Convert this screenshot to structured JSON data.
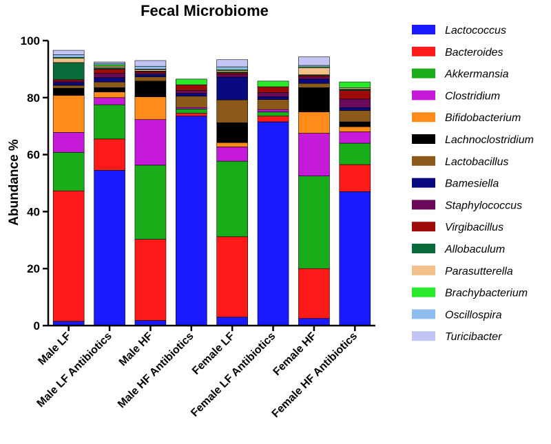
{
  "chart_data": {
    "type": "stacked-bar",
    "title": "Fecal Microbiome",
    "ylabel": "Abundance %",
    "xlabel": "",
    "ylim": [
      0,
      100
    ],
    "yticks": [
      0,
      20,
      40,
      60,
      80,
      100
    ],
    "legend_position": "right",
    "categories": [
      "Male LF",
      "Male LF Antibiotics",
      "Male HF",
      "Male HF Antibiotics",
      "Female LF",
      "Female LF Antibiotics",
      "Female HF",
      "Female HF Antibiotics"
    ],
    "series": [
      {
        "name": "Lactococcus",
        "color": "#1a1aff",
        "values": [
          1.5,
          54.5,
          1.8,
          73.5,
          3.0,
          71.5,
          2.5,
          47.0
        ]
      },
      {
        "name": "Bacteroides",
        "color": "#ff1a1a",
        "values": [
          45.8,
          11.0,
          28.5,
          1.0,
          28.2,
          2.0,
          17.5,
          9.5
        ]
      },
      {
        "name": "Akkermansia",
        "color": "#1aad1a",
        "values": [
          13.5,
          12.0,
          26.0,
          1.5,
          26.5,
          1.5,
          32.5,
          7.5
        ]
      },
      {
        "name": "Clostridium",
        "color": "#c61ad9",
        "values": [
          7.0,
          2.5,
          16.0,
          0.5,
          5.0,
          0.8,
          15.0,
          4.0
        ]
      },
      {
        "name": "Bifidobacterium",
        "color": "#ff8c1a",
        "values": [
          13.0,
          2.0,
          8.0,
          0.0,
          1.5,
          0.0,
          7.5,
          1.8
        ]
      },
      {
        "name": "Lachnoclostridium",
        "color": "#000000",
        "values": [
          2.5,
          1.5,
          5.5,
          0.0,
          7.0,
          0.0,
          8.5,
          1.7
        ]
      },
      {
        "name": "Lactobacillus",
        "color": "#8b5a1a",
        "values": [
          1.0,
          2.0,
          1.5,
          4.0,
          8.0,
          3.5,
          1.5,
          4.0
        ]
      },
      {
        "name": "Bamesiella",
        "color": "#0a0a80",
        "values": [
          1.0,
          1.5,
          0.8,
          1.0,
          8.0,
          1.0,
          1.5,
          1.0
        ]
      },
      {
        "name": "Staphylococcus",
        "color": "#6b0a5a",
        "values": [
          0.5,
          1.5,
          0.5,
          1.0,
          1.0,
          1.5,
          0.8,
          3.0
        ]
      },
      {
        "name": "Virgibacillus",
        "color": "#9e0a0a",
        "values": [
          0.5,
          1.5,
          0.5,
          2.0,
          0.5,
          2.0,
          0.5,
          3.0
        ]
      },
      {
        "name": "Allobaculum",
        "color": "#0a6b3a",
        "values": [
          6.0,
          0.5,
          0.2,
          0.0,
          0.3,
          0.0,
          0.2,
          0.5
        ]
      },
      {
        "name": "Parasutterella",
        "color": "#f2c08a",
        "values": [
          1.5,
          0.5,
          0.5,
          0.0,
          0.5,
          0.0,
          2.5,
          0.5
        ]
      },
      {
        "name": "Brachybacterium",
        "color": "#2ae82a",
        "values": [
          0.3,
          0.5,
          0.2,
          2.0,
          0.3,
          2.0,
          0.3,
          2.0
        ]
      },
      {
        "name": "Oscillospira",
        "color": "#8fbdf0",
        "values": [
          1.0,
          0.5,
          1.0,
          0.0,
          1.0,
          0.0,
          0.5,
          0.0
        ]
      },
      {
        "name": "Turicibacter",
        "color": "#c5c5f5",
        "values": [
          1.5,
          0.5,
          2.0,
          0.0,
          2.5,
          0.0,
          3.0,
          0.0
        ]
      }
    ]
  }
}
